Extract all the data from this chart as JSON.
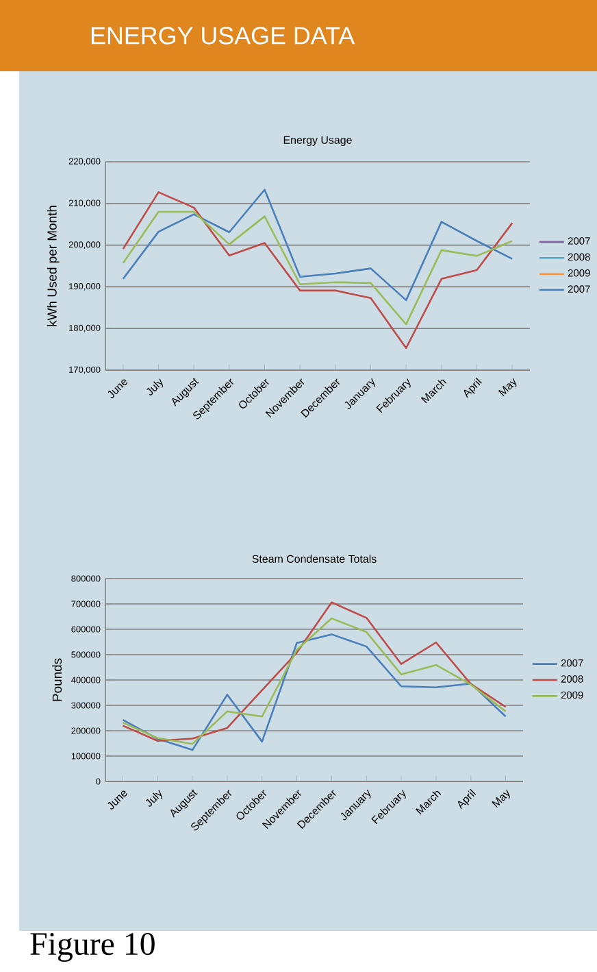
{
  "chart_data": [
    {
      "type": "line",
      "title": "Energy Usage",
      "ylabel": "kWh Used per Month",
      "annotations": [
        "ENERGY USAGE DATA"
      ],
      "categories": [
        "June",
        "July",
        "August",
        "September",
        "October",
        "November",
        "December",
        "January",
        "February",
        "March",
        "April",
        "May"
      ],
      "series": [
        {
          "name": "2007",
          "color": "#7f60a0",
          "values": [
            null,
            null,
            null,
            null,
            null,
            null,
            null,
            null,
            null,
            null,
            null,
            null
          ]
        },
        {
          "name": "2008",
          "color": "#4bacc6",
          "values": [
            null,
            null,
            null,
            null,
            null,
            null,
            null,
            null,
            null,
            null,
            null,
            null
          ]
        },
        {
          "name": "2009",
          "color": "#f79646",
          "values": [
            null,
            null,
            null,
            null,
            null,
            null,
            null,
            null,
            null,
            null,
            null,
            null
          ]
        },
        {
          "name": "2007",
          "color": "#4a7ebb",
          "values": [
            191900,
            203200,
            207400,
            203100,
            213300,
            192400,
            193200,
            194400,
            186800,
            205600,
            201000,
            196700
          ]
        },
        {
          "color": "#be4b48",
          "values": [
            199100,
            212700,
            209000,
            197500,
            200500,
            189100,
            189100,
            187300,
            175300,
            191900,
            194000,
            205300
          ]
        },
        {
          "color": "#9bbb59",
          "values": [
            195700,
            208000,
            208000,
            200200,
            206900,
            190600,
            191100,
            190900,
            181000,
            198800,
            197400,
            201000
          ]
        }
      ],
      "ylim": [
        170000,
        220000
      ],
      "yticks": [
        {
          "value": 170000,
          "label": "170,000"
        },
        {
          "value": 180000,
          "label": "180,000"
        },
        {
          "value": 190000,
          "label": "190,000"
        },
        {
          "value": 200000,
          "label": "200,000"
        },
        {
          "value": 210000,
          "label": "210,000"
        },
        {
          "value": 220000,
          "label": "220,000"
        }
      ],
      "grid": "y",
      "legend": "right",
      "marker": "none",
      "line_style": "solid"
    },
    {
      "type": "line",
      "title": "Steam Condensate Totals",
      "ylabel": "Pounds",
      "annotations": [
        "Figure 10"
      ],
      "categories": [
        "June",
        "July",
        "August",
        "September",
        "October",
        "November",
        "December",
        "January",
        "February",
        "March",
        "April",
        "May"
      ],
      "series": [
        {
          "name": "2007",
          "color": "#4a7ebb",
          "values": [
            243000,
            168000,
            124000,
            342000,
            157000,
            546000,
            580000,
            532000,
            375000,
            371000,
            386000,
            256000
          ]
        },
        {
          "name": "2008",
          "color": "#be4b48",
          "values": [
            220000,
            160000,
            169000,
            211000,
            360000,
            508000,
            706000,
            645000,
            463000,
            548000,
            384000,
            294000
          ]
        },
        {
          "name": "2009",
          "color": "#9bbb59",
          "values": [
            232000,
            171000,
            148000,
            276000,
            256000,
            519000,
            643000,
            589000,
            422000,
            459000,
            382000,
            276000
          ]
        }
      ],
      "ylim": [
        0,
        800000
      ],
      "yticks": [
        0,
        100000,
        200000,
        300000,
        400000,
        500000,
        600000,
        700000,
        800000
      ],
      "grid": "y",
      "legend": "right",
      "marker": "none",
      "line_style": "solid"
    }
  ]
}
